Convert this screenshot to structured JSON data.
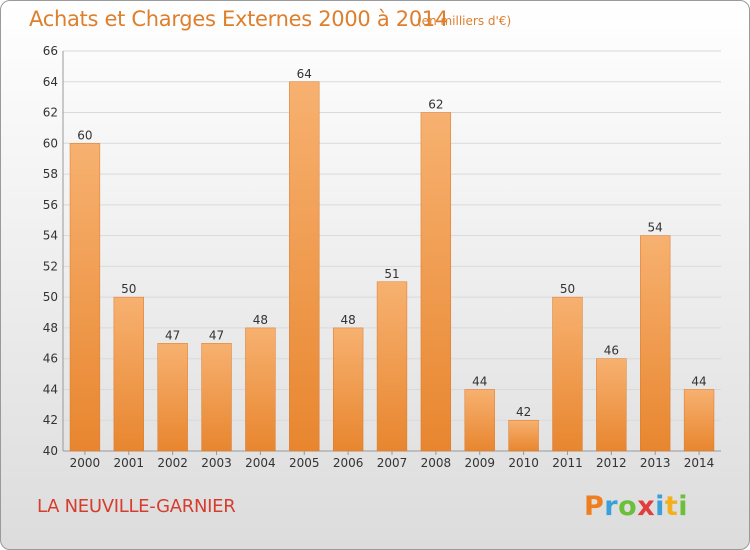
{
  "header": {
    "title": "Achats et Charges Externes 2000 à 2014",
    "subtitle": "(en milliers d'€)"
  },
  "footer": {
    "commune": "LA NEUVILLE-GARNIER",
    "logo": "Proxiti",
    "logo_colors": [
      "#f07d1e",
      "#3aa0d9",
      "#6bbf3b",
      "#e23d3d",
      "#3aa0d9",
      "#f2b01e",
      "#6bbf3b"
    ]
  },
  "chart_data": {
    "type": "bar",
    "title": "Achats et Charges Externes 2000 à 2014",
    "subtitle": "(en milliers d'€)",
    "categories": [
      "2000",
      "2001",
      "2002",
      "2003",
      "2004",
      "2005",
      "2006",
      "2007",
      "2008",
      "2009",
      "2010",
      "2011",
      "2012",
      "2013",
      "2014"
    ],
    "values": [
      60,
      50,
      47,
      47,
      48,
      64,
      48,
      51,
      62,
      44,
      42,
      50,
      46,
      54,
      44
    ],
    "data_labels": [
      "60",
      "50",
      "47",
      "47",
      "48",
      "64",
      "48",
      "51",
      "62",
      "44",
      "42",
      "50",
      "46",
      "54",
      "44"
    ],
    "ylim": [
      40,
      66
    ],
    "yticks": [
      40,
      42,
      44,
      46,
      48,
      50,
      52,
      54,
      56,
      58,
      60,
      62,
      64,
      66
    ],
    "grid": true,
    "bar_color": "#e8862f",
    "bar_color_light": "#f7b170",
    "grid_color": "#d9d9d9"
  }
}
